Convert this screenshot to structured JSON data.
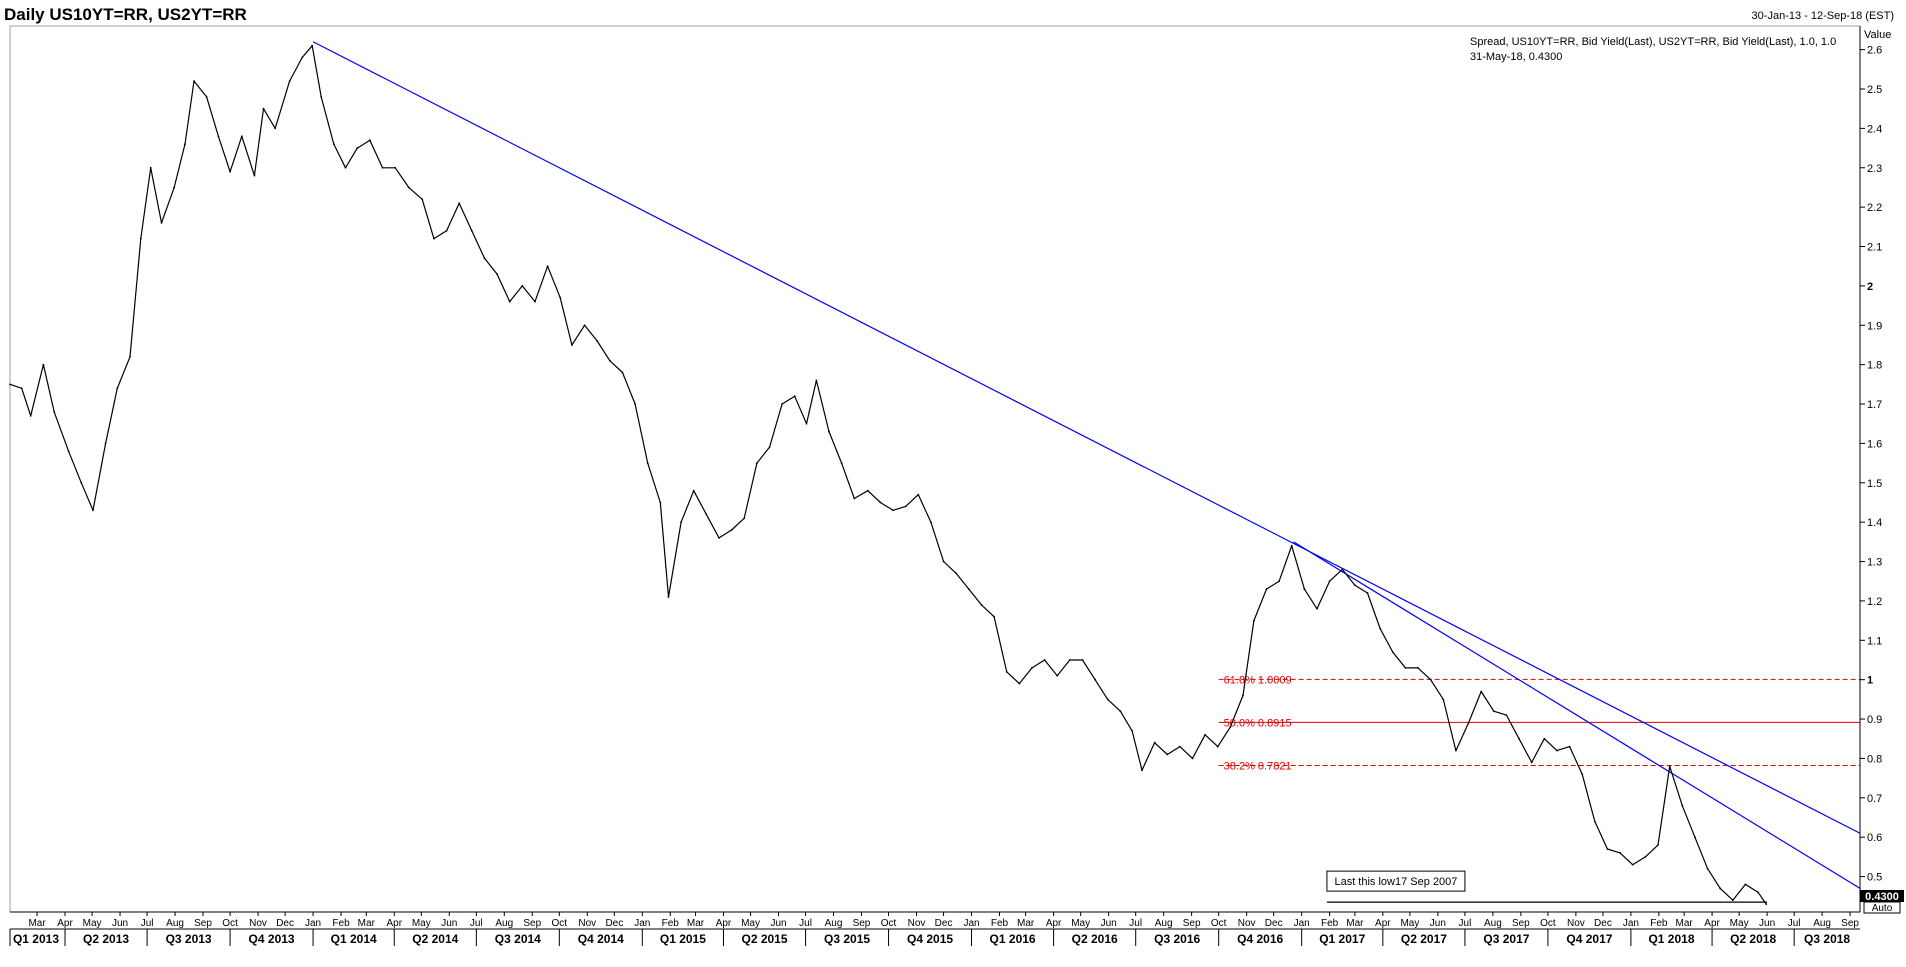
{
  "header": {
    "title": "Daily US10YT=RR, US2YT=RR",
    "date_range": "30-Jan-13 - 12-Sep-18 (EST)"
  },
  "legend": {
    "line1": "Spread, US10YT=RR, Bid Yield(Last), US2YT=RR, Bid Yield(Last),  1.0, 1.0",
    "line2": "31-May-18, 0.4300"
  },
  "y_axis": {
    "title": "Value",
    "ticks": [
      0.5,
      0.6,
      0.7,
      0.8,
      0.9,
      1,
      1.1,
      1.2,
      1.3,
      1.4,
      1.5,
      1.6,
      1.7,
      1.8,
      1.9,
      2,
      2.1,
      2.2,
      2.3,
      2.4,
      2.5,
      2.6
    ],
    "tick_labels": [
      "0.5",
      "0.6",
      "0.7",
      "0.8",
      "0.9",
      "1",
      "1.1",
      "1.2",
      "1.3",
      "1.4",
      "1.5",
      "1.6",
      "1.7",
      "1.8",
      "1.9",
      "2",
      "2.1",
      "2.2",
      "2.3",
      "2.4",
      "2.5",
      "2.6"
    ],
    "bold_ticks": [
      1,
      2
    ],
    "last_value_label": "0.4300",
    "auto_label": "Auto"
  },
  "x_axis": {
    "months": [
      {
        "label": "Mar",
        "date": "2013-03-01"
      },
      {
        "label": "Apr",
        "date": "2013-04-01"
      },
      {
        "label": "May",
        "date": "2013-05-01"
      },
      {
        "label": "Jun",
        "date": "2013-06-01"
      },
      {
        "label": "Jul",
        "date": "2013-07-01"
      },
      {
        "label": "Aug",
        "date": "2013-08-01"
      },
      {
        "label": "Sep",
        "date": "2013-09-01"
      },
      {
        "label": "Oct",
        "date": "2013-10-01"
      },
      {
        "label": "Nov",
        "date": "2013-11-01"
      },
      {
        "label": "Dec",
        "date": "2013-12-01"
      },
      {
        "label": "Jan",
        "date": "2014-01-01"
      },
      {
        "label": "Feb",
        "date": "2014-02-01"
      },
      {
        "label": "Mar",
        "date": "2014-03-01"
      },
      {
        "label": "Apr",
        "date": "2014-04-01"
      },
      {
        "label": "May",
        "date": "2014-05-01"
      },
      {
        "label": "Jun",
        "date": "2014-06-01"
      },
      {
        "label": "Jul",
        "date": "2014-07-01"
      },
      {
        "label": "Aug",
        "date": "2014-08-01"
      },
      {
        "label": "Sep",
        "date": "2014-09-01"
      },
      {
        "label": "Oct",
        "date": "2014-10-01"
      },
      {
        "label": "Nov",
        "date": "2014-11-01"
      },
      {
        "label": "Dec",
        "date": "2014-12-01"
      },
      {
        "label": "Jan",
        "date": "2015-01-01"
      },
      {
        "label": "Feb",
        "date": "2015-02-01"
      },
      {
        "label": "Mar",
        "date": "2015-03-01"
      },
      {
        "label": "Apr",
        "date": "2015-04-01"
      },
      {
        "label": "May",
        "date": "2015-05-01"
      },
      {
        "label": "Jun",
        "date": "2015-06-01"
      },
      {
        "label": "Jul",
        "date": "2015-07-01"
      },
      {
        "label": "Aug",
        "date": "2015-08-01"
      },
      {
        "label": "Sep",
        "date": "2015-09-01"
      },
      {
        "label": "Oct",
        "date": "2015-10-01"
      },
      {
        "label": "Nov",
        "date": "2015-11-01"
      },
      {
        "label": "Dec",
        "date": "2015-12-01"
      },
      {
        "label": "Jan",
        "date": "2016-01-01"
      },
      {
        "label": "Feb",
        "date": "2016-02-01"
      },
      {
        "label": "Mar",
        "date": "2016-03-01"
      },
      {
        "label": "Apr",
        "date": "2016-04-01"
      },
      {
        "label": "May",
        "date": "2016-05-01"
      },
      {
        "label": "Jun",
        "date": "2016-06-01"
      },
      {
        "label": "Jul",
        "date": "2016-07-01"
      },
      {
        "label": "Aug",
        "date": "2016-08-01"
      },
      {
        "label": "Sep",
        "date": "2016-09-01"
      },
      {
        "label": "Oct",
        "date": "2016-10-01"
      },
      {
        "label": "Nov",
        "date": "2016-11-01"
      },
      {
        "label": "Dec",
        "date": "2016-12-01"
      },
      {
        "label": "Jan",
        "date": "2017-01-01"
      },
      {
        "label": "Feb",
        "date": "2017-02-01"
      },
      {
        "label": "Mar",
        "date": "2017-03-01"
      },
      {
        "label": "Apr",
        "date": "2017-04-01"
      },
      {
        "label": "May",
        "date": "2017-05-01"
      },
      {
        "label": "Jun",
        "date": "2017-06-01"
      },
      {
        "label": "Jul",
        "date": "2017-07-01"
      },
      {
        "label": "Aug",
        "date": "2017-08-01"
      },
      {
        "label": "Sep",
        "date": "2017-09-01"
      },
      {
        "label": "Oct",
        "date": "2017-10-01"
      },
      {
        "label": "Nov",
        "date": "2017-11-01"
      },
      {
        "label": "Dec",
        "date": "2017-12-01"
      },
      {
        "label": "Jan",
        "date": "2018-01-01"
      },
      {
        "label": "Feb",
        "date": "2018-02-01"
      },
      {
        "label": "Mar",
        "date": "2018-03-01"
      },
      {
        "label": "Apr",
        "date": "2018-04-01"
      },
      {
        "label": "May",
        "date": "2018-05-01"
      },
      {
        "label": "Jun",
        "date": "2018-06-01"
      },
      {
        "label": "Jul",
        "date": "2018-07-01"
      },
      {
        "label": "Aug",
        "date": "2018-08-01"
      },
      {
        "label": "Sep",
        "date": "2018-09-01"
      }
    ],
    "quarters": [
      {
        "label": "Q1 2013",
        "start": "2013-01-01"
      },
      {
        "label": "Q2 2013",
        "start": "2013-04-01"
      },
      {
        "label": "Q3 2013",
        "start": "2013-07-01"
      },
      {
        "label": "Q4 2013",
        "start": "2013-10-01"
      },
      {
        "label": "Q1 2014",
        "start": "2014-01-01"
      },
      {
        "label": "Q2 2014",
        "start": "2014-04-01"
      },
      {
        "label": "Q3 2014",
        "start": "2014-07-01"
      },
      {
        "label": "Q4 2014",
        "start": "2014-10-01"
      },
      {
        "label": "Q1 2015",
        "start": "2015-01-01"
      },
      {
        "label": "Q2 2015",
        "start": "2015-04-01"
      },
      {
        "label": "Q3 2015",
        "start": "2015-07-01"
      },
      {
        "label": "Q4 2015",
        "start": "2015-10-01"
      },
      {
        "label": "Q1 2016",
        "start": "2016-01-01"
      },
      {
        "label": "Q2 2016",
        "start": "2016-04-01"
      },
      {
        "label": "Q3 2016",
        "start": "2016-07-01"
      },
      {
        "label": "Q4 2016",
        "start": "2016-10-01"
      },
      {
        "label": "Q1 2017",
        "start": "2017-01-01"
      },
      {
        "label": "Q2 2017",
        "start": "2017-04-01"
      },
      {
        "label": "Q3 2017",
        "start": "2017-07-01"
      },
      {
        "label": "Q4 2017",
        "start": "2017-10-01"
      },
      {
        "label": "Q1 2018",
        "start": "2018-01-01"
      },
      {
        "label": "Q2 2018",
        "start": "2018-04-01"
      },
      {
        "label": "Q3 2018",
        "start": "2018-07-01"
      }
    ]
  },
  "chart_data": {
    "type": "line",
    "title": "Daily US10YT=RR, US2YT=RR",
    "ylabel": "Value",
    "xlim": [
      "2013-01-30",
      "2018-09-12"
    ],
    "ylim": [
      0.41,
      2.66
    ],
    "grid": false,
    "legend_position": "top-right",
    "series": [
      {
        "name": "Spread, US10YT=RR, Bid Yield(Last), US2YT=RR, Bid Yield(Last),  1.0, 1.0",
        "color": "#000000",
        "points": [
          [
            "2013-01-30",
            1.75
          ],
          [
            "2013-02-12",
            1.74
          ],
          [
            "2013-02-22",
            1.67
          ],
          [
            "2013-03-08",
            1.8
          ],
          [
            "2013-03-20",
            1.68
          ],
          [
            "2013-04-05",
            1.58
          ],
          [
            "2013-04-19",
            1.5
          ],
          [
            "2013-05-02",
            1.43
          ],
          [
            "2013-05-16",
            1.6
          ],
          [
            "2013-05-29",
            1.74
          ],
          [
            "2013-06-12",
            1.82
          ],
          [
            "2013-06-24",
            2.12
          ],
          [
            "2013-07-05",
            2.3
          ],
          [
            "2013-07-17",
            2.16
          ],
          [
            "2013-07-31",
            2.25
          ],
          [
            "2013-08-12",
            2.36
          ],
          [
            "2013-08-22",
            2.52
          ],
          [
            "2013-09-05",
            2.48
          ],
          [
            "2013-09-18",
            2.38
          ],
          [
            "2013-10-01",
            2.29
          ],
          [
            "2013-10-14",
            2.38
          ],
          [
            "2013-10-28",
            2.28
          ],
          [
            "2013-11-07",
            2.45
          ],
          [
            "2013-11-20",
            2.4
          ],
          [
            "2013-12-06",
            2.52
          ],
          [
            "2013-12-20",
            2.58
          ],
          [
            "2013-12-31",
            2.61
          ],
          [
            "2014-01-10",
            2.48
          ],
          [
            "2014-01-24",
            2.36
          ],
          [
            "2014-02-06",
            2.3
          ],
          [
            "2014-02-19",
            2.35
          ],
          [
            "2014-03-05",
            2.37
          ],
          [
            "2014-03-19",
            2.3
          ],
          [
            "2014-04-02",
            2.3
          ],
          [
            "2014-04-17",
            2.25
          ],
          [
            "2014-05-02",
            2.22
          ],
          [
            "2014-05-15",
            2.12
          ],
          [
            "2014-05-29",
            2.14
          ],
          [
            "2014-06-12",
            2.21
          ],
          [
            "2014-06-26",
            2.14
          ],
          [
            "2014-07-10",
            2.07
          ],
          [
            "2014-07-24",
            2.03
          ],
          [
            "2014-08-07",
            1.96
          ],
          [
            "2014-08-21",
            2.0
          ],
          [
            "2014-09-04",
            1.96
          ],
          [
            "2014-09-18",
            2.05
          ],
          [
            "2014-10-02",
            1.97
          ],
          [
            "2014-10-15",
            1.85
          ],
          [
            "2014-10-29",
            1.9
          ],
          [
            "2014-11-12",
            1.86
          ],
          [
            "2014-11-26",
            1.81
          ],
          [
            "2014-12-10",
            1.78
          ],
          [
            "2014-12-24",
            1.7
          ],
          [
            "2015-01-07",
            1.55
          ],
          [
            "2015-01-21",
            1.45
          ],
          [
            "2015-01-30",
            1.21
          ],
          [
            "2015-02-13",
            1.4
          ],
          [
            "2015-02-27",
            1.48
          ],
          [
            "2015-03-13",
            1.42
          ],
          [
            "2015-03-27",
            1.36
          ],
          [
            "2015-04-10",
            1.38
          ],
          [
            "2015-04-24",
            1.41
          ],
          [
            "2015-05-08",
            1.55
          ],
          [
            "2015-05-22",
            1.59
          ],
          [
            "2015-06-05",
            1.7
          ],
          [
            "2015-06-19",
            1.72
          ],
          [
            "2015-07-02",
            1.65
          ],
          [
            "2015-07-13",
            1.76
          ],
          [
            "2015-07-27",
            1.63
          ],
          [
            "2015-08-10",
            1.55
          ],
          [
            "2015-08-24",
            1.46
          ],
          [
            "2015-09-08",
            1.48
          ],
          [
            "2015-09-22",
            1.45
          ],
          [
            "2015-10-06",
            1.43
          ],
          [
            "2015-10-20",
            1.44
          ],
          [
            "2015-11-03",
            1.47
          ],
          [
            "2015-11-17",
            1.4
          ],
          [
            "2015-12-01",
            1.3
          ],
          [
            "2015-12-15",
            1.27
          ],
          [
            "2015-12-29",
            1.23
          ],
          [
            "2016-01-12",
            1.19
          ],
          [
            "2016-01-26",
            1.16
          ],
          [
            "2016-02-09",
            1.02
          ],
          [
            "2016-02-23",
            0.99
          ],
          [
            "2016-03-08",
            1.03
          ],
          [
            "2016-03-22",
            1.05
          ],
          [
            "2016-04-05",
            1.01
          ],
          [
            "2016-04-19",
            1.05
          ],
          [
            "2016-05-03",
            1.05
          ],
          [
            "2016-05-17",
            1.0
          ],
          [
            "2016-05-31",
            0.95
          ],
          [
            "2016-06-14",
            0.92
          ],
          [
            "2016-06-27",
            0.87
          ],
          [
            "2016-07-08",
            0.77
          ],
          [
            "2016-07-22",
            0.84
          ],
          [
            "2016-08-05",
            0.81
          ],
          [
            "2016-08-19",
            0.83
          ],
          [
            "2016-09-02",
            0.8
          ],
          [
            "2016-09-16",
            0.86
          ],
          [
            "2016-09-30",
            0.83
          ],
          [
            "2016-10-14",
            0.88
          ],
          [
            "2016-10-28",
            0.96
          ],
          [
            "2016-11-09",
            1.15
          ],
          [
            "2016-11-23",
            1.23
          ],
          [
            "2016-12-07",
            1.25
          ],
          [
            "2016-12-21",
            1.34
          ],
          [
            "2017-01-04",
            1.23
          ],
          [
            "2017-01-18",
            1.18
          ],
          [
            "2017-02-01",
            1.25
          ],
          [
            "2017-02-15",
            1.28
          ],
          [
            "2017-03-01",
            1.24
          ],
          [
            "2017-03-15",
            1.22
          ],
          [
            "2017-03-29",
            1.13
          ],
          [
            "2017-04-12",
            1.07
          ],
          [
            "2017-04-26",
            1.03
          ],
          [
            "2017-05-10",
            1.03
          ],
          [
            "2017-05-24",
            1.0
          ],
          [
            "2017-06-07",
            0.95
          ],
          [
            "2017-06-21",
            0.82
          ],
          [
            "2017-07-05",
            0.89
          ],
          [
            "2017-07-19",
            0.97
          ],
          [
            "2017-08-02",
            0.92
          ],
          [
            "2017-08-16",
            0.91
          ],
          [
            "2017-08-30",
            0.85
          ],
          [
            "2017-09-13",
            0.79
          ],
          [
            "2017-09-27",
            0.85
          ],
          [
            "2017-10-11",
            0.82
          ],
          [
            "2017-10-25",
            0.83
          ],
          [
            "2017-11-08",
            0.76
          ],
          [
            "2017-11-22",
            0.64
          ],
          [
            "2017-12-06",
            0.57
          ],
          [
            "2017-12-20",
            0.56
          ],
          [
            "2018-01-03",
            0.53
          ],
          [
            "2018-01-17",
            0.55
          ],
          [
            "2018-01-31",
            0.58
          ],
          [
            "2018-02-13",
            0.78
          ],
          [
            "2018-02-27",
            0.68
          ],
          [
            "2018-03-13",
            0.6
          ],
          [
            "2018-03-27",
            0.52
          ],
          [
            "2018-04-10",
            0.47
          ],
          [
            "2018-04-24",
            0.44
          ],
          [
            "2018-05-08",
            0.48
          ],
          [
            "2018-05-22",
            0.46
          ],
          [
            "2018-05-31",
            0.43
          ]
        ]
      }
    ],
    "trendlines": [
      {
        "color": "#0000ff",
        "start": [
          "2014-01-01",
          2.62
        ],
        "end": [
          "2018-09-12",
          0.61
        ]
      },
      {
        "color": "#0000ff",
        "start": [
          "2016-12-23",
          1.35
        ],
        "end": [
          "2018-09-12",
          0.47
        ]
      }
    ],
    "fibonacci": [
      {
        "label": "61.8% 1.0009",
        "value": 1.0009,
        "style": "dashed",
        "start": "2016-10-01"
      },
      {
        "label": "50.0% 0.8915",
        "value": 0.8915,
        "style": "solid",
        "start": "2016-10-01"
      },
      {
        "label": "38.2% 0.7821",
        "value": 0.7821,
        "style": "dashed",
        "start": "2016-10-01"
      }
    ],
    "annotation": {
      "text": "Last this low17 Sep 2007",
      "date": "2017-07-01",
      "value": 0.43,
      "line_end_date": "2018-06-01"
    }
  }
}
